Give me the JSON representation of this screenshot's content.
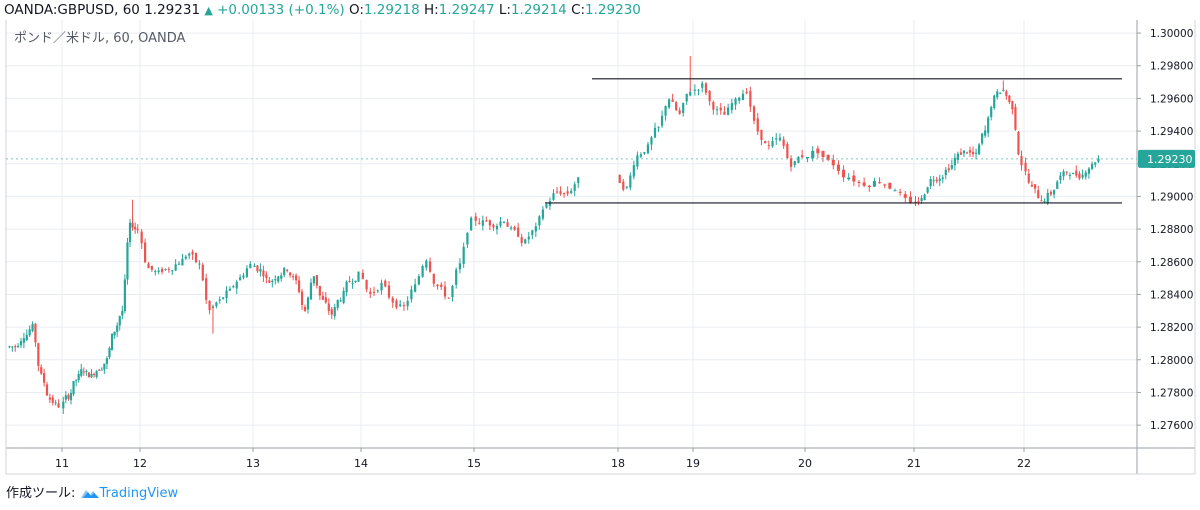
{
  "header": {
    "symbol": "OANDA:GBPUSD, 60",
    "last": "1.29231",
    "change": "+0.00133 (+0.1%)",
    "o_label": "O:",
    "o_value": "1.29218",
    "h_label": "H:",
    "h_value": "1.29247",
    "l_label": "L:",
    "l_value": "1.29214",
    "c_label": "C:",
    "c_value": "1.29230"
  },
  "legend": "ポンド／米ドル, 60, OANDA",
  "footer": {
    "prefix": "作成ツール:",
    "brand": "TradingView"
  },
  "colors": {
    "up": "#26a69a",
    "down": "#ef5350",
    "grid": "#e9edf2",
    "axis": "#9aa0a6",
    "price_tag": "#26a69a"
  },
  "chart_data": {
    "type": "candlestick",
    "title": "ポンド／米ドル, 60, OANDA",
    "x_tick_labels": [
      "11",
      "12",
      "13",
      "14",
      "15",
      "18",
      "19",
      "20",
      "21",
      "22"
    ],
    "y_tick_labels": [
      "1.30000",
      "1.29800",
      "1.29600",
      "1.29400",
      "1.29200",
      "1.29000",
      "1.28800",
      "1.28600",
      "1.28400",
      "1.28200",
      "1.28000",
      "1.27800",
      "1.27600"
    ],
    "ylim": [
      1.2746,
      1.3008
    ],
    "grid": true,
    "last_price_label": "1.29230",
    "horizontal_lines": [
      {
        "from_day": "18",
        "to_day": "22",
        "price": 1.2972
      },
      {
        "from_day": "15",
        "to_day": "22",
        "price": 1.2896
      }
    ],
    "anchors": [
      {
        "day": "10",
        "c": 1.2808
      },
      {
        "day": "10",
        "c": 1.2815
      },
      {
        "day": "10",
        "c": 1.282
      },
      {
        "day": "10",
        "c": 1.279
      },
      {
        "day": "10",
        "c": 1.2776
      },
      {
        "day": "10",
        "c": 1.2772
      },
      {
        "day": "11",
        "c": 1.2778
      },
      {
        "day": "11",
        "c": 1.2788
      },
      {
        "day": "11",
        "c": 1.2794
      },
      {
        "day": "11",
        "c": 1.279
      },
      {
        "day": "11",
        "c": 1.2795
      },
      {
        "day": "11",
        "c": 1.28
      },
      {
        "day": "11",
        "c": 1.2818
      },
      {
        "day": "11",
        "c": 1.283
      },
      {
        "day": "11",
        "c": 1.2882
      },
      {
        "day": "11",
        "c": 1.288
      },
      {
        "day": "12",
        "c": 1.2856
      },
      {
        "day": "12",
        "c": 1.2853
      },
      {
        "day": "12",
        "c": 1.2856
      },
      {
        "day": "12",
        "c": 1.286
      },
      {
        "day": "12",
        "c": 1.2865
      },
      {
        "day": "12",
        "c": 1.2858
      },
      {
        "day": "12",
        "c": 1.283
      },
      {
        "day": "12",
        "c": 1.2836
      },
      {
        "day": "12",
        "c": 1.2842
      },
      {
        "day": "12",
        "c": 1.285
      },
      {
        "day": "12",
        "c": 1.2858
      },
      {
        "day": "13",
        "c": 1.2855
      },
      {
        "day": "13",
        "c": 1.2848
      },
      {
        "day": "13",
        "c": 1.2852
      },
      {
        "day": "13",
        "c": 1.2856
      },
      {
        "day": "13",
        "c": 1.2848
      },
      {
        "day": "13",
        "c": 1.283
      },
      {
        "day": "13",
        "c": 1.2852
      },
      {
        "day": "13",
        "c": 1.2836
      },
      {
        "day": "13",
        "c": 1.2828
      },
      {
        "day": "13",
        "c": 1.2838
      },
      {
        "day": "13",
        "c": 1.2848
      },
      {
        "day": "13",
        "c": 1.2852
      },
      {
        "day": "14",
        "c": 1.284
      },
      {
        "day": "14",
        "c": 1.2846
      },
      {
        "day": "14",
        "c": 1.2836
      },
      {
        "day": "14",
        "c": 1.2832
      },
      {
        "day": "14",
        "c": 1.2845
      },
      {
        "day": "14",
        "c": 1.2862
      },
      {
        "day": "14",
        "c": 1.2845
      },
      {
        "day": "14",
        "c": 1.2838
      },
      {
        "day": "14",
        "c": 1.2858
      },
      {
        "day": "14",
        "c": 1.2885
      },
      {
        "day": "15",
        "c": 1.2884
      },
      {
        "day": "15",
        "c": 1.2883
      },
      {
        "day": "15",
        "c": 1.2886
      },
      {
        "day": "15",
        "c": 1.2878
      },
      {
        "day": "15",
        "c": 1.2872
      },
      {
        "day": "15",
        "c": 1.288
      },
      {
        "day": "15",
        "c": 1.2895
      },
      {
        "day": "15",
        "c": 1.2903
      },
      {
        "day": "15",
        "c": 1.2902
      },
      {
        "day": "15",
        "c": 1.291
      },
      {
        "day": "18",
        "c": 1.2905
      },
      {
        "day": "18",
        "c": 1.2925
      },
      {
        "day": "18",
        "c": 1.293
      },
      {
        "day": "18",
        "c": 1.2942
      },
      {
        "day": "18",
        "c": 1.296
      },
      {
        "day": "18",
        "c": 1.295
      },
      {
        "day": "18",
        "c": 1.2965
      },
      {
        "day": "19",
        "c": 1.2968
      },
      {
        "day": "19",
        "c": 1.2955
      },
      {
        "day": "19",
        "c": 1.295
      },
      {
        "day": "19",
        "c": 1.2958
      },
      {
        "day": "19",
        "c": 1.2965
      },
      {
        "day": "19",
        "c": 1.294
      },
      {
        "day": "19",
        "c": 1.293
      },
      {
        "day": "19",
        "c": 1.2935
      },
      {
        "day": "19",
        "c": 1.292
      },
      {
        "day": "19",
        "c": 1.2925
      },
      {
        "day": "20",
        "c": 1.2928
      },
      {
        "day": "20",
        "c": 1.292
      },
      {
        "day": "20",
        "c": 1.2912
      },
      {
        "day": "20",
        "c": 1.2908
      },
      {
        "day": "20",
        "c": 1.291
      },
      {
        "day": "20",
        "c": 1.2905
      },
      {
        "day": "20",
        "c": 1.2895
      },
      {
        "day": "21",
        "c": 1.2898
      },
      {
        "day": "21",
        "c": 1.291
      },
      {
        "day": "21",
        "c": 1.2912
      },
      {
        "day": "21",
        "c": 1.2918
      },
      {
        "day": "21",
        "c": 1.2925
      },
      {
        "day": "21",
        "c": 1.2928
      },
      {
        "day": "21",
        "c": 1.2925
      },
      {
        "day": "21",
        "c": 1.294
      },
      {
        "day": "21",
        "c": 1.296
      },
      {
        "day": "21",
        "c": 1.2965
      },
      {
        "day": "21",
        "c": 1.2955
      },
      {
        "day": "21",
        "c": 1.292
      },
      {
        "day": "22",
        "c": 1.2905
      },
      {
        "day": "22",
        "c": 1.2898
      },
      {
        "day": "22",
        "c": 1.2902
      },
      {
        "day": "22",
        "c": 1.2912
      },
      {
        "day": "22",
        "c": 1.2915
      },
      {
        "day": "22",
        "c": 1.2913
      },
      {
        "day": "22",
        "c": 1.2918
      },
      {
        "day": "22",
        "c": 1.2923
      }
    ],
    "spikes": [
      {
        "day": "18",
        "high": 1.2986
      },
      {
        "day": "21",
        "high": 1.2971
      },
      {
        "day": "11",
        "high": 1.2898
      },
      {
        "day": "12",
        "high": 1.2816
      }
    ]
  }
}
